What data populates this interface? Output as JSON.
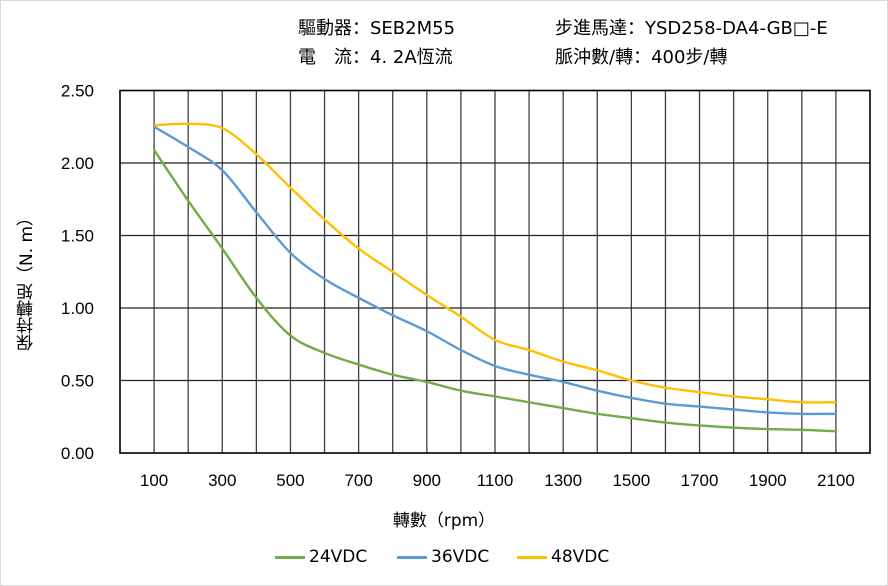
{
  "header": {
    "driver_label": "驅動器：",
    "driver_value": "SEB2M55",
    "motor_label": "步進馬達：",
    "motor_value": "YSD258-DA4-GB□-E",
    "current_label": "電　流：",
    "current_value": "4. 2A恆流",
    "pulse_label": "脈沖數/轉：",
    "pulse_value": "400步/轉"
  },
  "chart_data": {
    "type": "line",
    "xlabel": "轉數（rpm）",
    "ylabel": "保持轉矩（N. m）",
    "xlim": [
      0,
      2200
    ],
    "ylim": [
      0,
      2.5
    ],
    "x_ticks": [
      "100",
      "300",
      "500",
      "700",
      "900",
      "1100",
      "1300",
      "1500",
      "1700",
      "1900",
      "2100"
    ],
    "y_ticks": [
      "0.00",
      "0.50",
      "1.00",
      "1.50",
      "2.00",
      "2.50"
    ],
    "grid": true,
    "legend_position": "bottom",
    "x": [
      100,
      200,
      300,
      400,
      500,
      600,
      700,
      800,
      900,
      1000,
      1100,
      1200,
      1300,
      1400,
      1500,
      1600,
      1700,
      1800,
      1900,
      2000,
      2100
    ],
    "series": [
      {
        "name": "24VDC",
        "color": "#70ad47",
        "values": [
          2.09,
          1.74,
          1.41,
          1.07,
          0.81,
          0.69,
          0.61,
          0.54,
          0.49,
          0.43,
          0.39,
          0.35,
          0.31,
          0.27,
          0.24,
          0.21,
          0.19,
          0.175,
          0.165,
          0.16,
          0.15
        ]
      },
      {
        "name": "36VDC",
        "color": "#5b9bd5",
        "values": [
          2.25,
          2.11,
          1.95,
          1.66,
          1.38,
          1.2,
          1.07,
          0.95,
          0.84,
          0.71,
          0.6,
          0.54,
          0.49,
          0.43,
          0.38,
          0.34,
          0.32,
          0.3,
          0.28,
          0.27,
          0.27
        ]
      },
      {
        "name": "48VDC",
        "color": "#ffc000",
        "values": [
          2.26,
          2.27,
          2.24,
          2.06,
          1.83,
          1.61,
          1.41,
          1.25,
          1.09,
          0.94,
          0.78,
          0.71,
          0.63,
          0.57,
          0.5,
          0.45,
          0.42,
          0.39,
          0.37,
          0.35,
          0.35
        ]
      }
    ]
  }
}
